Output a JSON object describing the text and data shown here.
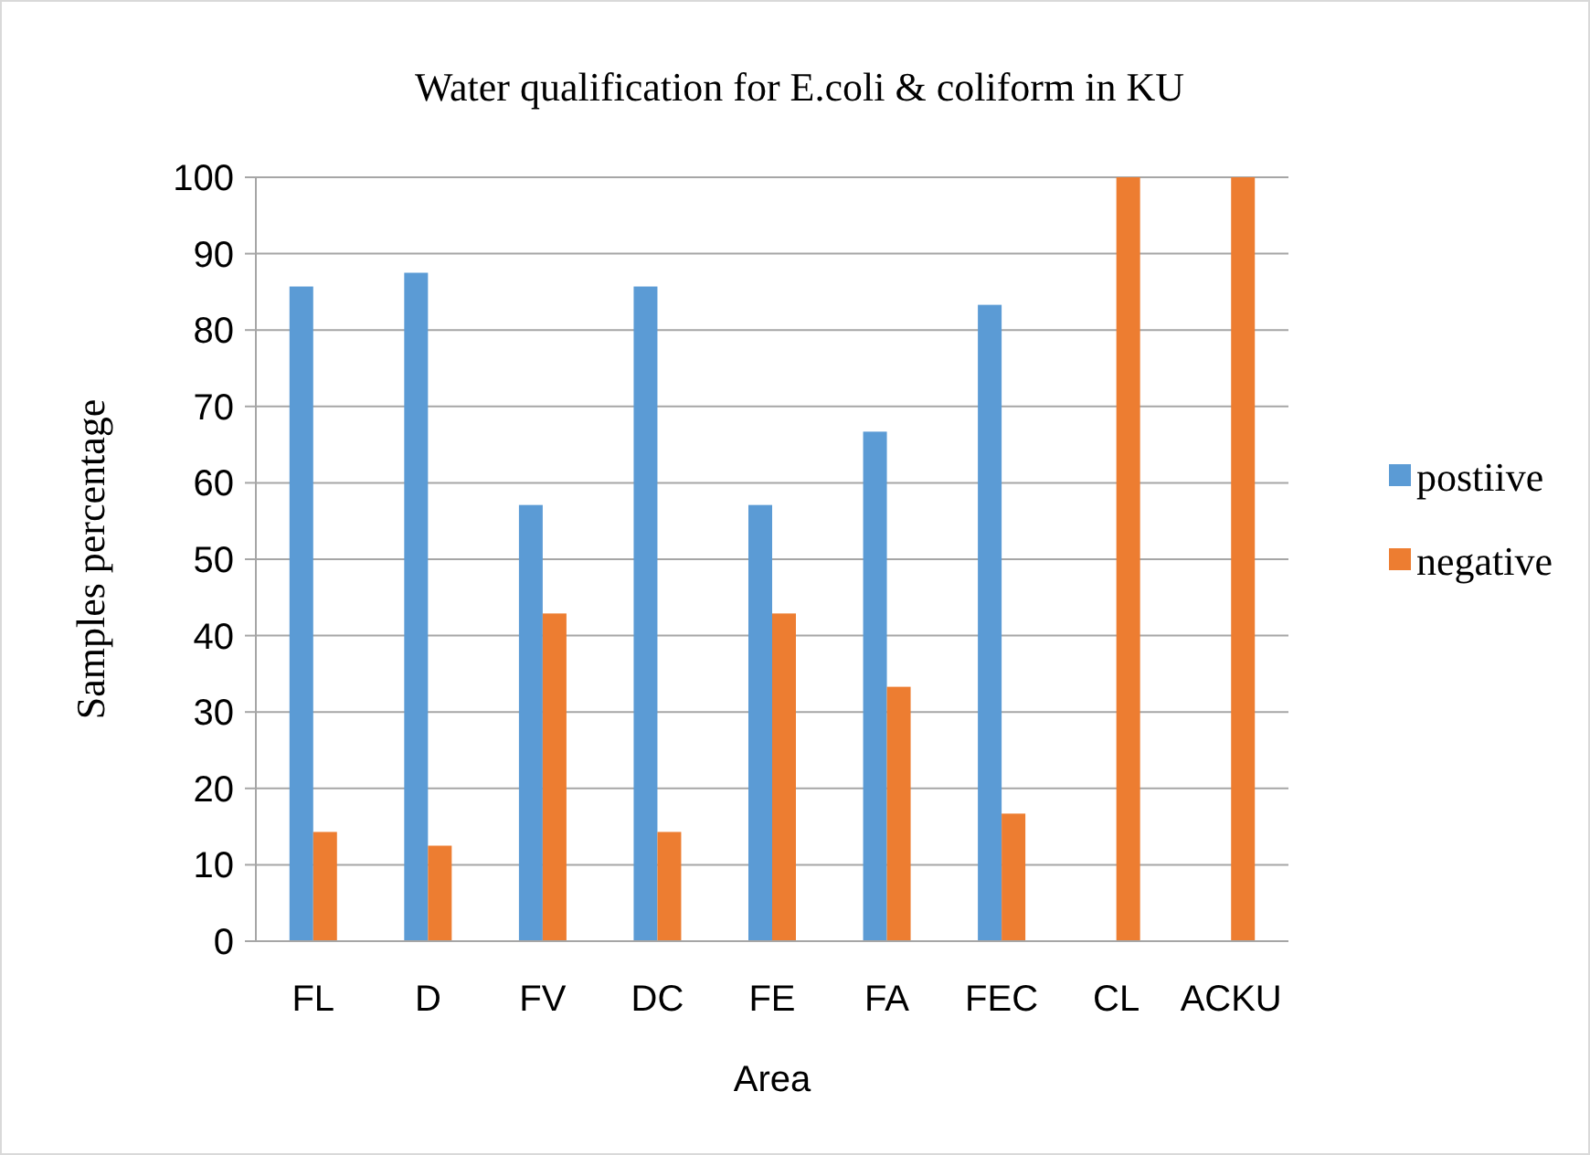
{
  "chart_data": {
    "type": "bar",
    "title": "Water qualification for E.coli & coliform in KU",
    "xlabel": "Area",
    "ylabel": "Samples percentage",
    "categories": [
      "FL",
      "D",
      "FV",
      "DC",
      "FE",
      "FA",
      "FEC",
      "CL",
      "ACKU"
    ],
    "series": [
      {
        "name": "postiive",
        "color": "#5b9bd5",
        "values": [
          85.7,
          87.5,
          57.1,
          85.7,
          57.1,
          66.7,
          83.3,
          0,
          0
        ]
      },
      {
        "name": "negative",
        "color": "#ed7d31",
        "values": [
          14.3,
          12.5,
          42.9,
          14.3,
          42.9,
          33.3,
          16.7,
          100,
          100
        ]
      }
    ],
    "ylim": [
      0,
      100
    ],
    "yticks": [
      0,
      10,
      20,
      30,
      40,
      50,
      60,
      70,
      80,
      90,
      100
    ],
    "grid": "y",
    "legend": "right"
  }
}
